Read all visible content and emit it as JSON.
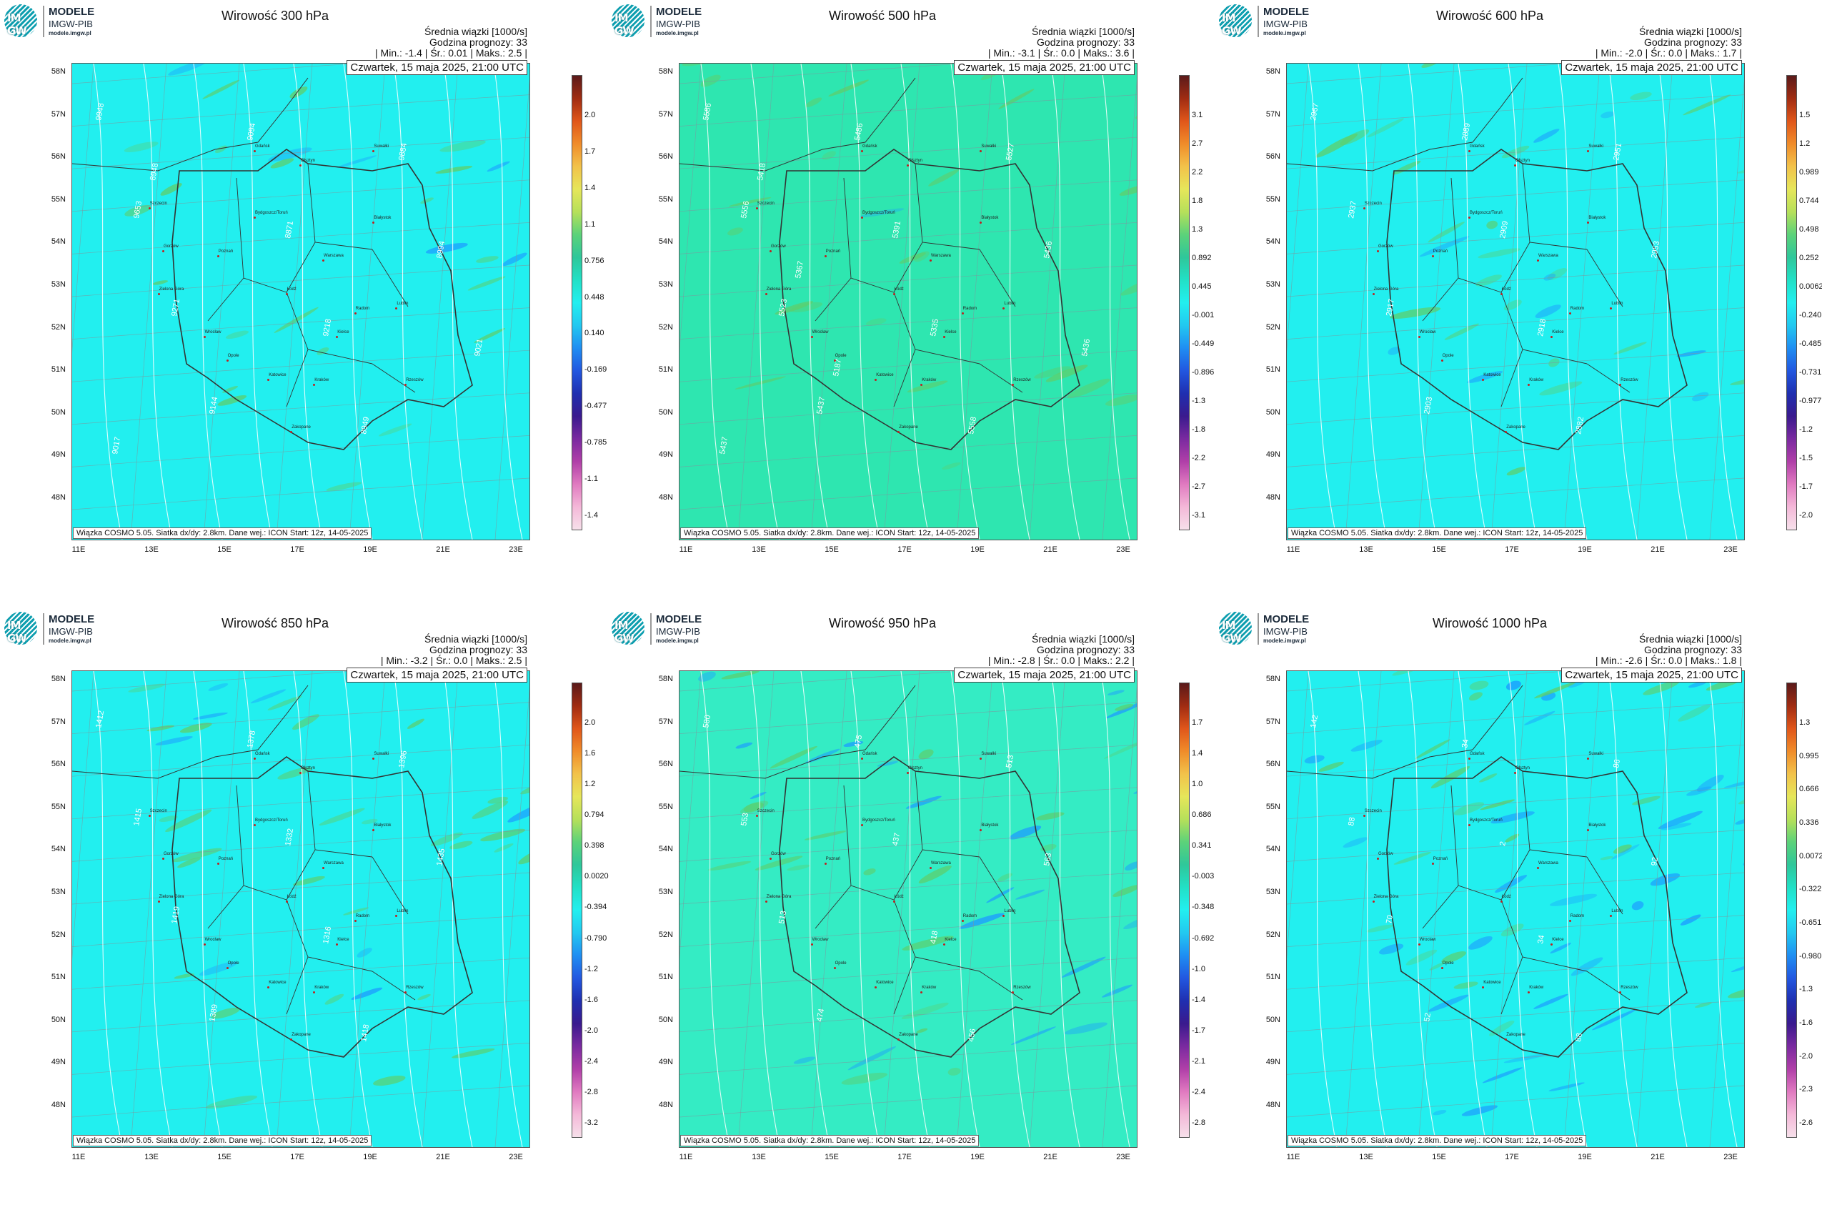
{
  "logo": {
    "line1": "MODELE",
    "line2": "IMGW-PIB",
    "line3": "modele.imgw.pl",
    "mark": "IM GW"
  },
  "colors": {
    "background": "#22efef",
    "positive": "#2ee6b0",
    "negative": "#1d9cff"
  },
  "lat_labels": [
    "58N",
    "57N",
    "56N",
    "55N",
    "54N",
    "53N",
    "52N",
    "51N",
    "50N",
    "49N",
    "48N"
  ],
  "lon_labels": [
    "11E",
    "13E",
    "15E",
    "17E",
    "19E",
    "21E",
    "23E"
  ],
  "cities": [
    "Gdańsk",
    "Olsztyn",
    "Suwałki",
    "Szczecin",
    "Bydgoszcz/Toruń",
    "Białystok",
    "Gorzów",
    "Poznań",
    "Warszawa",
    "Zielona Góra",
    "Łódź",
    "Lublin",
    "Wrocław",
    "Kielce",
    "Opole",
    "Radom",
    "Katowice",
    "Kraków",
    "Rzeszów",
    "Zakopane"
  ],
  "chart_data": [
    {
      "type": "heatmap",
      "title": "Wirowość 300 hPa",
      "header": {
        "line1": "Średnia wiązki [1000/s]",
        "line2": "Godzina prognozy: 33",
        "stats": "| Min.:    -1.4 | Śr.:    0.01 | Maks.:    2.5 |"
      },
      "date": "Czwartek, 15 maja 2025, 21:00 UTC",
      "footer": "Wiązka COSMO 5.05. Siatka dx/dy: 2.8km. Dane wej.: ICON Start: 12z, 14-05-2025",
      "stats": {
        "min": -1.4,
        "mean": 0.01,
        "max": 2.5
      },
      "colorbar_ticks": [
        "2.0",
        "1.7",
        "1.4",
        "1.1",
        "0.756",
        "0.448",
        "0.140",
        "-0.169",
        "-0.477",
        "-0.785",
        "-1.1",
        "-1.4"
      ],
      "contour_labels": [
        "9948",
        "9653",
        "9271",
        "9144",
        "9094",
        "8871",
        "9218",
        "8949",
        "9884",
        "8994",
        "9021",
        "9017",
        "8948"
      ]
    },
    {
      "type": "heatmap",
      "title": "Wirowość 500 hPa",
      "header": {
        "line1": "Średnia wiązki [1000/s]",
        "line2": "Godzina prognozy: 33",
        "stats": "| Min.:    -3.1 | Śr.:    0.0 | Maks.:    3.6 |"
      },
      "date": "Czwartek, 15 maja 2025, 21:00 UTC",
      "footer": "Wiązka COSMO 5.05. Siatka dx/dy: 2.8km. Dane wej.: ICON Start: 12z, 14-05-2025",
      "stats": {
        "min": -3.1,
        "mean": 0.0,
        "max": 3.6
      },
      "colorbar_ticks": [
        "3.1",
        "2.7",
        "2.2",
        "1.8",
        "1.3",
        "0.892",
        "0.445",
        "-0.001",
        "-0.449",
        "-0.896",
        "-1.3",
        "-1.8",
        "-2.2",
        "-2.7",
        "-3.1"
      ],
      "contour_labels": [
        "5586",
        "5556",
        "5523",
        "5437",
        "5486",
        "5391",
        "5335",
        "5558",
        "5527",
        "5436",
        "5436",
        "5437",
        "5418",
        "5367",
        "5187"
      ]
    },
    {
      "type": "heatmap",
      "title": "Wirowość 600 hPa",
      "header": {
        "line1": "Średnia wiązki [1000/s]",
        "line2": "Godzina prognozy: 33",
        "stats": "| Min.:    -2.0 | Śr.:    0.0 | Maks.:    1.7 |"
      },
      "date": "Czwartek, 15 maja 2025, 21:00 UTC",
      "footer": "Wiązka COSMO 5.05. Siatka dx/dy: 2.8km. Dane wej.: ICON Start: 12z, 14-05-2025",
      "stats": {
        "min": -2.0,
        "mean": 0.0,
        "max": 1.7
      },
      "colorbar_ticks": [
        "1.5",
        "1.2",
        "0.989",
        "0.744",
        "0.498",
        "0.252",
        "0.0062",
        "-0.240",
        "-0.485",
        "-0.731",
        "-0.977",
        "-1.2",
        "-1.5",
        "-1.7",
        "-2.0"
      ],
      "contour_labels": [
        "2967",
        "2937",
        "2917",
        "2903",
        "2889",
        "2909",
        "2918",
        "2882",
        "2951",
        "2953"
      ]
    },
    {
      "type": "heatmap",
      "title": "Wirowość 850 hPa",
      "header": {
        "line1": "Średnia wiązki [1000/s]",
        "line2": "Godzina prognozy: 33",
        "stats": "| Min.:    -3.2 | Śr.:    0.0 | Maks.:    2.5 |"
      },
      "date": "Czwartek, 15 maja 2025, 21:00 UTC",
      "footer": "Wiązka COSMO 5.05. Siatka dx/dy: 2.8km. Dane wej.: ICON Start: 12z, 14-05-2025",
      "stats": {
        "min": -3.2,
        "mean": 0.0,
        "max": 2.5
      },
      "colorbar_ticks": [
        "2.0",
        "1.6",
        "1.2",
        "0.794",
        "0.398",
        "0.0020",
        "-0.394",
        "-0.790",
        "-1.2",
        "-1.6",
        "-2.0",
        "-2.4",
        "-2.8",
        "-3.2"
      ],
      "contour_labels": [
        "1412",
        "1415",
        "1419",
        "1389",
        "1378",
        "1332",
        "1316",
        "1418",
        "1396",
        "1435"
      ]
    },
    {
      "type": "heatmap",
      "title": "Wirowość 950 hPa",
      "header": {
        "line1": "Średnia wiązki [1000/s]",
        "line2": "Godzina prognozy: 33",
        "stats": "| Min.:    -2.8 | Śr.:    0.0 | Maks.:    2.2 |"
      },
      "date": "Czwartek, 15 maja 2025, 21:00 UTC",
      "footer": "Wiązka COSMO 5.05. Siatka dx/dy: 2.8km. Dane wej.: ICON Start: 12z, 14-05-2025",
      "stats": {
        "min": -2.8,
        "mean": 0.0,
        "max": 2.2
      },
      "colorbar_ticks": [
        "1.7",
        "1.4",
        "1.0",
        "0.686",
        "0.341",
        "-0.003",
        "-0.348",
        "-0.692",
        "-1.0",
        "-1.4",
        "-1.7",
        "-2.1",
        "-2.4",
        "-2.8"
      ],
      "contour_labels": [
        "580",
        "553",
        "513",
        "474",
        "475",
        "437",
        "418",
        "456",
        "513",
        "563"
      ]
    },
    {
      "type": "heatmap",
      "title": "Wirowość 1000 hPa",
      "header": {
        "line1": "Średnia wiązki [1000/s]",
        "line2": "Godzina prognozy: 33",
        "stats": "| Min.:    -2.6 | Śr.:    0.0 | Maks.:    1.8 |"
      },
      "date": "Czwartek, 15 maja 2025, 21:00 UTC",
      "footer": "Wiązka COSMO 5.05. Siatka dx/dy: 2.8km. Dane wej.: ICON Start: 12z, 14-05-2025",
      "stats": {
        "min": -2.6,
        "mean": 0.0,
        "max": 1.8
      },
      "colorbar_ticks": [
        "1.3",
        "0.995",
        "0.666",
        "0.336",
        "0.0072",
        "-0.322",
        "-0.651",
        "-0.980",
        "-1.3",
        "-1.6",
        "-2.0",
        "-2.3",
        "-2.6"
      ],
      "contour_labels": [
        "142",
        "88",
        "70",
        "52",
        "34",
        "2",
        "34",
        "88",
        "86",
        "92"
      ]
    }
  ]
}
